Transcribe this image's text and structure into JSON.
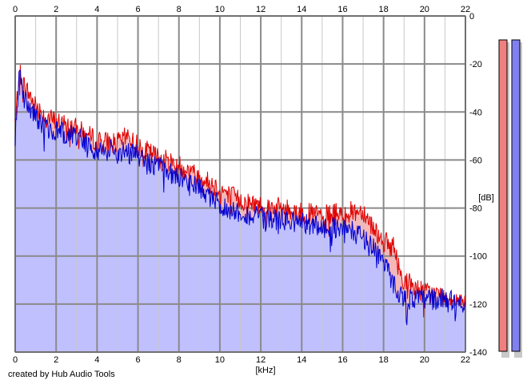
{
  "credit": "created by Hub Audio Tools",
  "chart_data": {
    "type": "area",
    "title": "",
    "xlabel": "[kHz]",
    "ylabel": "[dB]",
    "xlim": [
      0,
      22
    ],
    "ylim": [
      -140,
      0
    ],
    "x_ticks": [
      "0",
      "2",
      "4",
      "6",
      "8",
      "10",
      "12",
      "14",
      "16",
      "18",
      "20",
      "22"
    ],
    "y_ticks": [
      "0",
      "-20",
      "-40",
      "-60",
      "-80",
      "-100",
      "-120",
      "-140"
    ],
    "grid": true,
    "colors": {
      "channel_1": "#e00000",
      "channel_2": "#0000d0",
      "fill": "#c0c0ff",
      "fill_overlap": "#f4b8b8",
      "meter_1": "#f08080",
      "meter_2": "#8080f0"
    },
    "series": [
      {
        "color": "#e00000",
        "x": [
          0,
          0.2,
          0.5,
          1,
          1.5,
          2,
          3,
          4,
          5,
          5.5,
          6,
          7,
          8,
          9,
          10,
          11,
          12,
          13,
          14,
          15,
          16,
          17,
          17.5,
          18,
          18.5,
          18.8,
          19,
          20,
          21,
          22
        ],
        "y": [
          -45,
          -23,
          -30,
          -37,
          -42,
          -44,
          -47,
          -52,
          -53,
          -50,
          -54,
          -59,
          -62,
          -67,
          -72,
          -77,
          -79,
          -80,
          -82,
          -83,
          -82,
          -81,
          -88,
          -94,
          -96,
          -107,
          -110,
          -115,
          -117,
          -118
        ]
      },
      {
        "color": "#0000d0",
        "x": [
          0,
          0.2,
          0.5,
          1,
          1.5,
          2,
          3,
          4,
          5,
          6,
          7,
          8,
          9,
          10,
          11,
          12,
          13,
          14,
          15,
          16,
          17,
          17.5,
          18,
          18.5,
          19,
          20,
          21,
          22
        ],
        "y": [
          -50,
          -25,
          -34,
          -42,
          -46,
          -48,
          -50,
          -56,
          -56,
          -58,
          -63,
          -67,
          -72,
          -79,
          -82,
          -84,
          -85,
          -86,
          -88,
          -88,
          -92,
          -96,
          -102,
          -112,
          -118,
          -118,
          -118,
          -120
        ]
      }
    ],
    "level_meters": [
      {
        "channel": 1,
        "level_db": 0
      },
      {
        "channel": 2,
        "level_db": 0
      }
    ]
  }
}
